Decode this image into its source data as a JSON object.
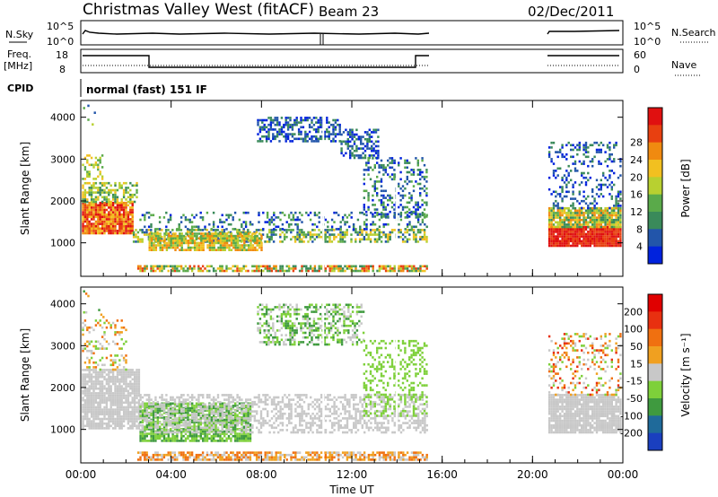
{
  "header": {
    "title": "Christmas Valley West (fitACF)",
    "beam": "Beam 23",
    "date": "02/Dec/2011"
  },
  "nsky_panel": {
    "left_label": "N.Sky",
    "left_ticks": [
      "10^5",
      "10^0"
    ],
    "right_ticks": [
      "10^5",
      "10^0"
    ],
    "right_label": "N.Search"
  },
  "freq_panel": {
    "left_label_1": "Freq.",
    "left_label_2": "[MHz]",
    "left_ticks": [
      "18",
      "8"
    ],
    "right_ticks": [
      "60",
      "0"
    ],
    "right_label": "Nave"
  },
  "cpid": {
    "label": "CPID",
    "text": "normal (fast) 151 IF"
  },
  "colors": {
    "power": [
      "#0022dd",
      "#2255aa",
      "#3a8a5a",
      "#5aaa4a",
      "#b8d030",
      "#f2c020",
      "#f08a10",
      "#e84010",
      "#e01010"
    ],
    "velocity": [
      "#1a3fbf",
      "#1f6a9a",
      "#3f9a3f",
      "#7ed03a",
      "#c8c8c8",
      "#f0a020",
      "#f07010",
      "#e83010",
      "#e00000"
    ]
  },
  "chart_data": [
    {
      "type": "heatmap",
      "name": "power",
      "ylabel": "Slant Range [km]",
      "yticks": [
        "1000",
        "2000",
        "3000",
        "4000"
      ],
      "ylim": [
        200,
        4400
      ],
      "xticks": [
        "00:00",
        "04:00",
        "08:00",
        "12:00",
        "16:00",
        "20:00",
        "00:00"
      ],
      "xlim_hours": [
        0,
        24
      ],
      "colorbar_label": "Power [dB]",
      "colorbar_ticks": [
        "4",
        "8",
        "12",
        "16",
        "20",
        "24",
        "28"
      ],
      "data_gap_hours": [
        15.5,
        20.7
      ]
    },
    {
      "type": "heatmap",
      "name": "velocity",
      "ylabel": "Slant Range [km]",
      "yticks": [
        "1000",
        "2000",
        "3000",
        "4000"
      ],
      "ylim": [
        200,
        4400
      ],
      "xticks": [
        "00:00",
        "04:00",
        "08:00",
        "12:00",
        "16:00",
        "20:00",
        "00:00"
      ],
      "xlabel": "Time UT",
      "xlim_hours": [
        0,
        24
      ],
      "colorbar_label": "Velocity [m s⁻¹]",
      "colorbar_ticks": [
        "200",
        "100",
        "50",
        "15",
        "-15",
        "-50",
        "-100",
        "-200"
      ],
      "data_gap_hours": [
        15.5,
        20.7
      ]
    }
  ]
}
